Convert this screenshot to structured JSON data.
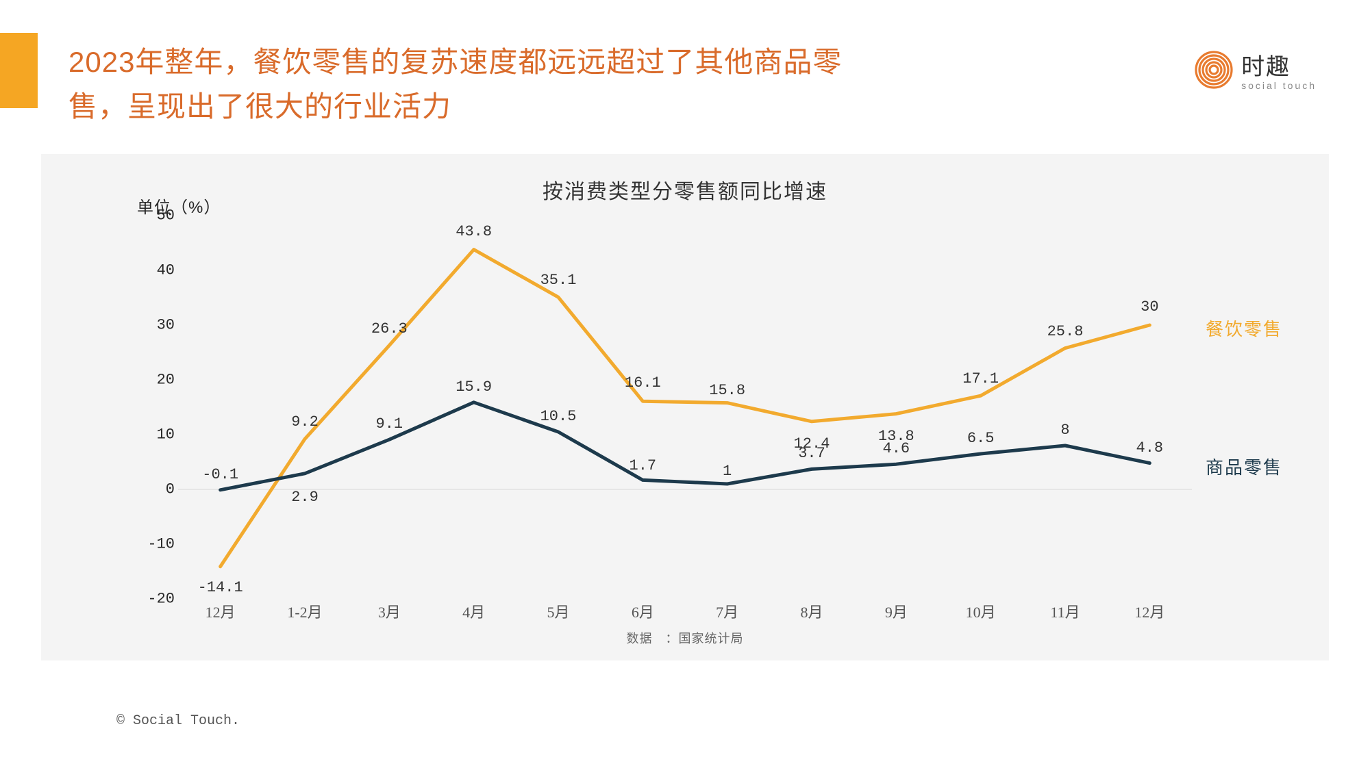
{
  "header": {
    "title": "2023年整年，餐饮零售的复苏速度都远远超过了其他商品零售，呈现出了很大的行业活力",
    "title_color": "#d96b2b",
    "accent_color": "#f5a623",
    "logo_cn": "时趣",
    "logo_en": "social touch",
    "logo_icon_color": "#e87b2f"
  },
  "chart": {
    "type": "line",
    "title": "按消费类型分零售额同比增速",
    "unit_label": "单位（%）",
    "background_color": "#f4f4f4",
    "grid_color": "#d7d7d7",
    "axis_text_color": "#272727",
    "ylim": [
      -20,
      50
    ],
    "ytick_step": 10,
    "yticks": [
      -20,
      -10,
      0,
      10,
      20,
      30,
      40,
      50
    ],
    "categories": [
      "12月",
      "1-2月",
      "3月",
      "4月",
      "5月",
      "6月",
      "7月",
      "8月",
      "9月",
      "10月",
      "11月",
      "12月"
    ],
    "series": [
      {
        "name": "餐饮零售",
        "color": "#f2aa2e",
        "line_width": 5,
        "values": [
          -14.1,
          9.2,
          26.3,
          43.8,
          35.1,
          16.1,
          15.8,
          12.4,
          13.8,
          17.1,
          25.8,
          30
        ],
        "label_offsets_y": [
          18,
          -12,
          -12,
          -14,
          -12,
          -14,
          -6,
          20,
          20,
          -12,
          -12,
          -14
        ]
      },
      {
        "name": "商品零售",
        "color": "#1d3a4c",
        "line_width": 5,
        "values": [
          -0.1,
          2.9,
          9.1,
          15.9,
          10.5,
          1.7,
          1,
          3.7,
          4.6,
          6.5,
          8,
          4.8
        ],
        "label_offsets_y": [
          -10,
          22,
          -10,
          -10,
          -10,
          -8,
          -6,
          -10,
          -10,
          -10,
          -10,
          -10
        ]
      }
    ],
    "source_note": "数据　：国家统计局"
  },
  "footer": {
    "copyright": "© Social Touch."
  }
}
